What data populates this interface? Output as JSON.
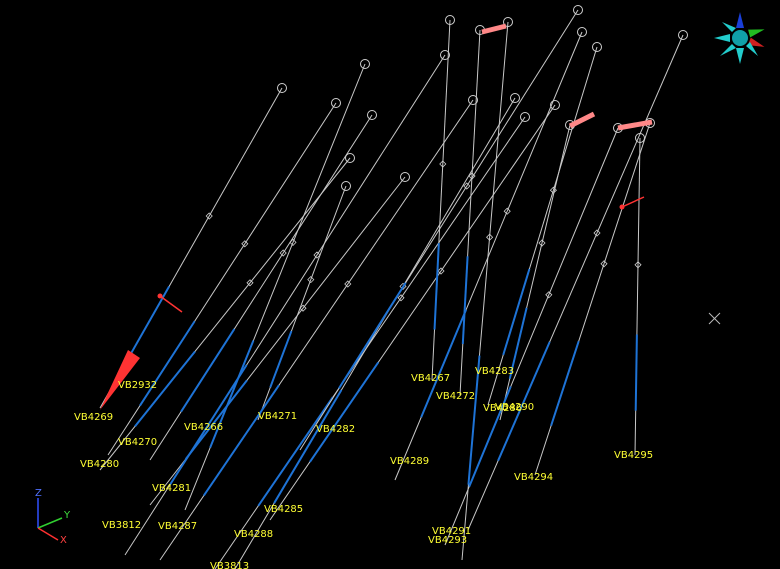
{
  "colors": {
    "background": "#000000",
    "trace": "#c8c8c8",
    "interval": "#1e73d6",
    "label": "#ffff33",
    "highlight": "#ff3333",
    "collar": "#cfcfcf"
  },
  "holes": [
    {
      "id": "VB2932"
    },
    {
      "id": "VB4269"
    },
    {
      "id": "VB4270"
    },
    {
      "id": "VB4280"
    },
    {
      "id": "VB4266"
    },
    {
      "id": "VB4271"
    },
    {
      "id": "VB4281"
    },
    {
      "id": "VB3812"
    },
    {
      "id": "VB4287"
    },
    {
      "id": "VB4288"
    },
    {
      "id": "VB3813"
    },
    {
      "id": "VB4285"
    },
    {
      "id": "VB4282"
    },
    {
      "id": "VB4289"
    },
    {
      "id": "VB4267"
    },
    {
      "id": "VB4272"
    },
    {
      "id": "VB4283"
    },
    {
      "id": "VB4286"
    },
    {
      "id": "VB4290"
    },
    {
      "id": "VB4291"
    },
    {
      "id": "VB4293"
    },
    {
      "id": "VB4294"
    },
    {
      "id": "VB4295"
    }
  ],
  "axes_triad": {
    "x": "X",
    "y": "Y",
    "z": "Z"
  },
  "orientation_widget": {
    "icon": "view-cube-icon"
  },
  "pivot_marker": {
    "icon": "pivot-cross-icon"
  }
}
